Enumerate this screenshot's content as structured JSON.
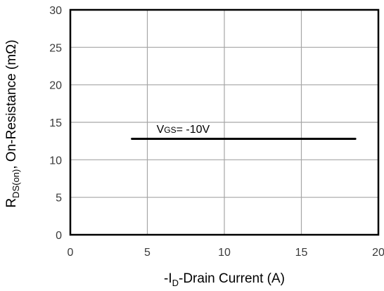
{
  "chart_data": {
    "type": "line",
    "title": "",
    "xlabel": "-ID-Drain Current (A)",
    "xlabel_parts": {
      "prefix": "-I",
      "sub": "D",
      "suffix": "-Drain Current (A)"
    },
    "ylabel": "RDS(on), On-Resistance (mΩ)",
    "ylabel_parts": {
      "prefix": "R",
      "sub": "DS(on)",
      "suffix": ", On-Resistance (mΩ)"
    },
    "xlim": [
      0,
      20
    ],
    "ylim": [
      0,
      30
    ],
    "xticks": [
      0,
      5,
      10,
      15,
      20
    ],
    "yticks": [
      0,
      5,
      10,
      15,
      20,
      25,
      30
    ],
    "xtick_labels": [
      "0",
      "5",
      "10",
      "15",
      "20"
    ],
    "ytick_labels": [
      "0",
      "5",
      "10",
      "15",
      "20",
      "25",
      "30"
    ],
    "grid": true,
    "legend": "none",
    "series": [
      {
        "x": [
          4,
          18.5
        ],
        "y": [
          12.8,
          12.8
        ],
        "color": "#000000"
      }
    ],
    "annotations": [
      {
        "text": "VGS= -10V",
        "parts": {
          "prefix": "V",
          "sub": "GS",
          "suffix": "= -10V"
        },
        "x": 5.6,
        "y": 13.6
      }
    ]
  },
  "colors": {
    "frame": "#000000",
    "grid": "#a6a6a6",
    "line": "#000000",
    "tick_text": "#3a3a3a"
  }
}
